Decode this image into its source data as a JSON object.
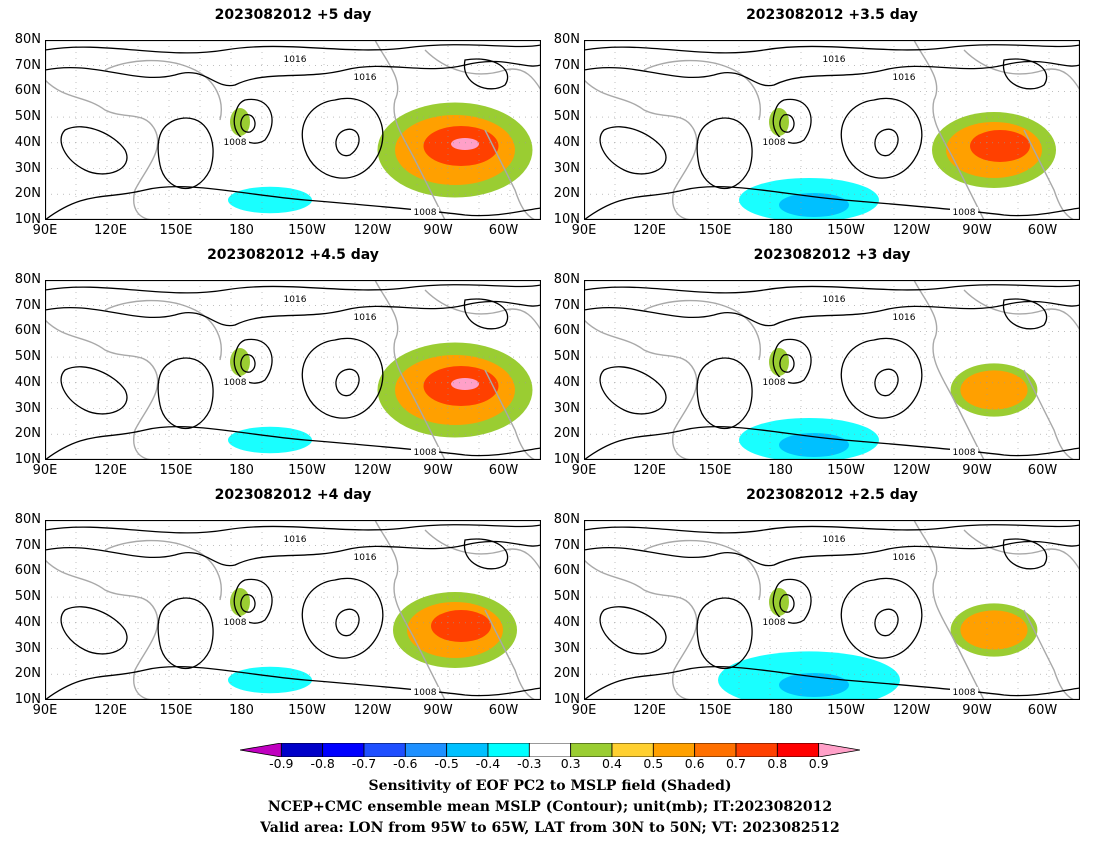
{
  "panels": [
    {
      "title": "2023082012 +5 day",
      "warm": "strong",
      "cold": "weak"
    },
    {
      "title": "2023082012 +3.5 day",
      "warm": "medium",
      "cold": "medium"
    },
    {
      "title": "2023082012 +4.5 day",
      "warm": "strong",
      "cold": "weak"
    },
    {
      "title": "2023082012 +3 day",
      "warm": "weak",
      "cold": "medium"
    },
    {
      "title": "2023082012 +4 day",
      "warm": "medium",
      "cold": "weak"
    },
    {
      "title": "2023082012 +2.5 day",
      "warm": "weak",
      "cold": "strong"
    }
  ],
  "lat_ticks": [
    "80N",
    "70N",
    "60N",
    "50N",
    "40N",
    "30N",
    "20N",
    "10N"
  ],
  "lon_ticks": [
    "90E",
    "120E",
    "150E",
    "180",
    "150W",
    "120W",
    "90W",
    "60W"
  ],
  "contour_labels": [
    "1016",
    "1008"
  ],
  "colorbar": {
    "labels": [
      "-0.9",
      "-0.8",
      "-0.7",
      "-0.6",
      "-0.5",
      "-0.4",
      "-0.3",
      "0.3",
      "0.4",
      "0.5",
      "0.6",
      "0.7",
      "0.8",
      "0.9"
    ],
    "colors": [
      "#c000c0",
      "#0000c8",
      "#0000ff",
      "#1f4fff",
      "#1e90ff",
      "#00c0ff",
      "#00ffff",
      "#ffffff",
      "#9acd32",
      "#ffd030",
      "#ffa000",
      "#ff7000",
      "#ff4000",
      "#ff0000",
      "#ffa0c8"
    ]
  },
  "caption": {
    "line1": "Sensitivity of EOF PC2 to MSLP field (Shaded)",
    "line2": "NCEP+CMC ensemble mean MSLP (Contour); unit(mb); IT:2023082012",
    "line3": "Valid area: LON from 95W to 65W, LAT from 30N to 50N; VT: 2023082512"
  }
}
